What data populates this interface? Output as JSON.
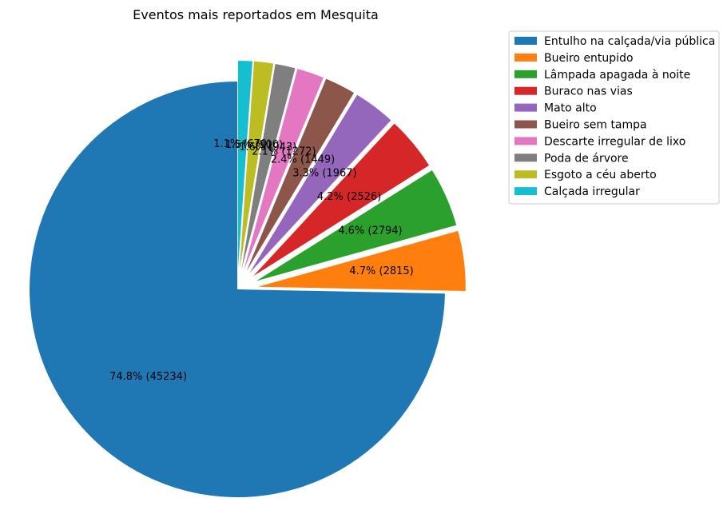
{
  "chart_data": {
    "type": "pie",
    "title": "Eventos mais reportados em Mesquita",
    "legend_position": "upper-right-outside",
    "start_angle_deg": 90,
    "direction": "counterclockwise",
    "exploded": true,
    "slices": [
      {
        "label": "Entulho na calçada/via pública",
        "value": 45234,
        "pct_label": "74.8% (45234)",
        "color": "#1f77b4"
      },
      {
        "label": "Bueiro entupido",
        "value": 2815,
        "pct_label": "4.7% (2815)",
        "color": "#ff7f0e"
      },
      {
        "label": "Lâmpada apagada à noite",
        "value": 2794,
        "pct_label": "4.6% (2794)",
        "color": "#2ca02c"
      },
      {
        "label": "Buraco nas vias",
        "value": 2526,
        "pct_label": "4.2% (2526)",
        "color": "#d62728"
      },
      {
        "label": "Mato alto",
        "value": 1967,
        "pct_label": "3.3% (1967)",
        "color": "#9467bd"
      },
      {
        "label": "Bueiro sem tampa",
        "value": 1449,
        "pct_label": "2.4% (1449)",
        "color": "#8c564b"
      },
      {
        "label": "Descarte irregular de lixo",
        "value": 1272,
        "pct_label": "2.1% (1272)",
        "color": "#e377c2"
      },
      {
        "label": "Poda de árvore",
        "value": 943,
        "pct_label": "1.6% (943)",
        "color": "#7f7f7f"
      },
      {
        "label": "Esgoto a céu aberto",
        "value": 900,
        "pct_label": "1.5% (900)",
        "color": "#bcbd22"
      },
      {
        "label": "Calçada irregular",
        "value": 670,
        "pct_label": "1.1% (670)",
        "color": "#17becf"
      }
    ]
  }
}
